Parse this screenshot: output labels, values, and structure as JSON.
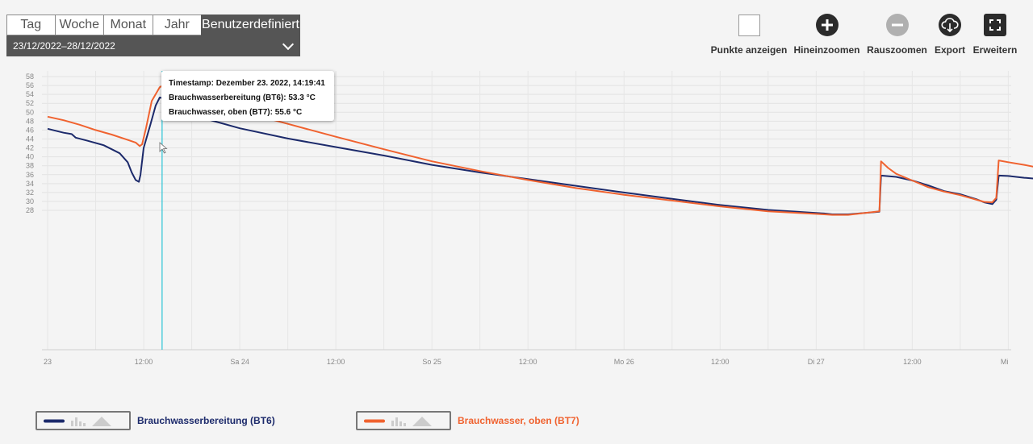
{
  "range": {
    "tabs": [
      {
        "label": "Tag",
        "width": 60
      },
      {
        "label": "Woche",
        "width": 61
      },
      {
        "label": "Monat",
        "width": 61
      },
      {
        "label": "Jahr",
        "width": 61
      },
      {
        "label": "Benutzerdefiniert",
        "width": 121
      }
    ],
    "active_tab": "Benutzerdefiniert",
    "date_range": "23/12/2022–28/12/2022"
  },
  "toolbar": {
    "show_points": "Punkte anzeigen",
    "zoom_in": "Hineinzoomen",
    "zoom_out": "Rauszoomen",
    "export": "Export",
    "expand": "Erweitern"
  },
  "tooltip": {
    "timestamp": "Timestamp: Dezember 23. 2022, 14:19:41",
    "bt6": "Brauchwasserbereitung (BT6): 53.3 °C",
    "bt7": "Brauchwasser, oben (BT7): 55.6 °C"
  },
  "legend": {
    "bt6": "Brauchwasserbereitung (BT6)",
    "bt7": "Brauchwasser, oben (BT7)"
  },
  "chart_data": {
    "type": "line",
    "x_unit": "hours since 23 Dec 2022 00:00",
    "x_range": [
      0,
      144
    ],
    "ylim": [
      27.5,
      58.5
    ],
    "y_ticks": [
      28,
      30,
      32,
      34,
      36,
      38,
      40,
      42,
      44,
      46,
      48,
      50,
      52,
      54,
      56,
      58
    ],
    "x_ticks": [
      {
        "x": 0,
        "label": "23"
      },
      {
        "x": 12,
        "label": "12:00"
      },
      {
        "x": 24,
        "label": "Sa 24"
      },
      {
        "x": 36,
        "label": "12:00"
      },
      {
        "x": 48,
        "label": "So 25"
      },
      {
        "x": 60,
        "label": "12:00"
      },
      {
        "x": 72,
        "label": "Mo 26"
      },
      {
        "x": 84,
        "label": "12:00"
      },
      {
        "x": 96,
        "label": "Di 27"
      },
      {
        "x": 108,
        "label": "12:00"
      },
      {
        "x": 120,
        "label": "Mi"
      }
    ],
    "cursor_x": 14.3,
    "grid": true,
    "series": [
      {
        "name": "Brauchwasserbereitung (BT6)",
        "color": "#1c2a6b",
        "points": [
          [
            0,
            46.3
          ],
          [
            2,
            45.4
          ],
          [
            3,
            45.1
          ],
          [
            3.5,
            44.3
          ],
          [
            5,
            43.6
          ],
          [
            7,
            42.6
          ],
          [
            8,
            41.7
          ],
          [
            9,
            40.8
          ],
          [
            10,
            38.8
          ],
          [
            10.5,
            36.5
          ],
          [
            11,
            34.8
          ],
          [
            11.4,
            34.4
          ],
          [
            11.6,
            36
          ],
          [
            12,
            42
          ],
          [
            12.8,
            47
          ],
          [
            13.5,
            51.5
          ],
          [
            14,
            53.3
          ],
          [
            14.8,
            53
          ],
          [
            16,
            51.7
          ],
          [
            17.5,
            50.2
          ],
          [
            20,
            48.4
          ],
          [
            24,
            46.4
          ],
          [
            30,
            44.1
          ],
          [
            36,
            42.2
          ],
          [
            42,
            40.3
          ],
          [
            48,
            38.2
          ],
          [
            54,
            36.5
          ],
          [
            60,
            35
          ],
          [
            66,
            33.5
          ],
          [
            72,
            32
          ],
          [
            78,
            30.6
          ],
          [
            84,
            29.2
          ],
          [
            90,
            28.1
          ],
          [
            97,
            27.3
          ],
          [
            98,
            27.1
          ],
          [
            100,
            27.1
          ],
          [
            103.9,
            27.7
          ],
          [
            104.1,
            35.8
          ],
          [
            106,
            35.5
          ],
          [
            108,
            34.7
          ],
          [
            110,
            33.6
          ],
          [
            112,
            32.3
          ],
          [
            114,
            31.6
          ],
          [
            116,
            30.5
          ],
          [
            117,
            29.8
          ],
          [
            118,
            29.4
          ],
          [
            118.5,
            30.4
          ],
          [
            118.8,
            35.8
          ],
          [
            120,
            35.7
          ],
          [
            122,
            35.3
          ],
          [
            124,
            35
          ],
          [
            126,
            34.7
          ],
          [
            127,
            34.7
          ]
        ]
      },
      {
        "name": "Brauchwasser, oben (BT7)",
        "color": "#f0622f",
        "points": [
          [
            0,
            49
          ],
          [
            2,
            48.2
          ],
          [
            4,
            47.2
          ],
          [
            6,
            46
          ],
          [
            8,
            45
          ],
          [
            10,
            43.8
          ],
          [
            11,
            43.2
          ],
          [
            11.5,
            42.4
          ],
          [
            11.8,
            42.8
          ],
          [
            12.3,
            46.5
          ],
          [
            13,
            52.5
          ],
          [
            14,
            55.6
          ],
          [
            14.5,
            56.1
          ],
          [
            15.5,
            55
          ],
          [
            17,
            54
          ],
          [
            20,
            52.3
          ],
          [
            24,
            50.3
          ],
          [
            30,
            47.4
          ],
          [
            36,
            44.5
          ],
          [
            42,
            41.7
          ],
          [
            48,
            39
          ],
          [
            54,
            36.8
          ],
          [
            60,
            34.8
          ],
          [
            66,
            33
          ],
          [
            72,
            31.5
          ],
          [
            78,
            30.2
          ],
          [
            84,
            28.9
          ],
          [
            90,
            27.8
          ],
          [
            97,
            27.1
          ],
          [
            98,
            27
          ],
          [
            100,
            27
          ],
          [
            103.9,
            27.8
          ],
          [
            104.1,
            39
          ],
          [
            105,
            37.5
          ],
          [
            106,
            36.2
          ],
          [
            108,
            34.7
          ],
          [
            110,
            33.2
          ],
          [
            112,
            32.2
          ],
          [
            114,
            31.4
          ],
          [
            116,
            30.4
          ],
          [
            117,
            29.9
          ],
          [
            118,
            29.8
          ],
          [
            118.5,
            30.8
          ],
          [
            118.8,
            39.2
          ],
          [
            120,
            38.8
          ],
          [
            122,
            38.2
          ],
          [
            124,
            37.5
          ],
          [
            126,
            36.8
          ],
          [
            127,
            36.7
          ]
        ]
      }
    ]
  }
}
